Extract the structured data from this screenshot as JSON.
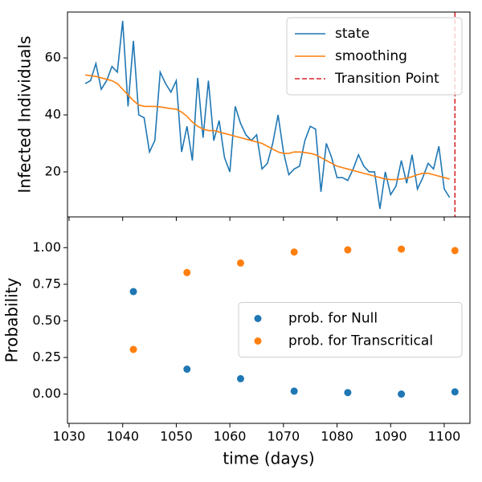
{
  "chart_data": [
    {
      "type": "line",
      "ylabel": "Infected Individuals",
      "x": [
        1033,
        1034,
        1035,
        1036,
        1037,
        1038,
        1039,
        1040,
        1041,
        1042,
        1043,
        1044,
        1045,
        1046,
        1047,
        1048,
        1049,
        1050,
        1051,
        1052,
        1053,
        1054,
        1055,
        1056,
        1057,
        1058,
        1059,
        1060,
        1061,
        1062,
        1063,
        1064,
        1065,
        1066,
        1067,
        1068,
        1069,
        1070,
        1071,
        1072,
        1073,
        1074,
        1075,
        1076,
        1077,
        1078,
        1079,
        1080,
        1081,
        1082,
        1083,
        1084,
        1085,
        1086,
        1087,
        1088,
        1089,
        1090,
        1091,
        1092,
        1093,
        1094,
        1095,
        1096,
        1097,
        1098,
        1099,
        1100,
        1101
      ],
      "series": [
        {
          "name": "state",
          "color": "#1f77b4",
          "values": [
            51,
            52,
            58,
            49,
            52,
            57,
            55,
            73,
            43,
            66,
            40,
            39,
            27,
            31,
            55,
            51,
            48,
            52,
            27,
            36,
            24,
            53,
            32,
            52,
            31,
            38,
            25,
            20,
            43,
            37,
            33,
            31,
            33,
            21,
            23,
            30,
            40,
            27,
            19,
            21,
            22,
            31,
            36,
            35,
            13,
            30,
            25,
            18,
            18,
            17,
            21,
            26,
            22,
            20,
            20,
            7,
            20,
            12,
            15,
            24,
            16,
            26,
            14,
            18,
            23,
            21,
            29,
            14,
            11
          ]
        },
        {
          "name": "smoothing",
          "color": "#ff7f0e",
          "values": [
            54,
            53.8,
            53.5,
            53,
            52.5,
            52,
            51,
            49,
            47,
            45,
            43.5,
            43,
            43,
            43,
            42.8,
            42.5,
            42.2,
            42,
            41,
            39.5,
            37.5,
            36,
            35,
            34.5,
            34.5,
            34,
            33.5,
            33,
            32.5,
            32,
            31.5,
            31,
            30.5,
            30,
            29,
            28,
            27,
            26.5,
            26.5,
            27,
            27,
            26.8,
            26.5,
            26,
            25,
            24,
            23,
            22,
            21.5,
            21,
            20.5,
            20,
            19.5,
            19,
            18.5,
            18,
            17.5,
            17.3,
            17.3,
            17.5,
            17.8,
            18.3,
            19,
            19.5,
            19.5,
            19,
            18.5,
            18,
            17.5
          ]
        }
      ],
      "transition": {
        "name": "Transition Point",
        "x": 1102,
        "color": "#d62728"
      },
      "xlim": [
        1029.7,
        1104.8
      ],
      "xticks": [
        1030,
        1040,
        1050,
        1060,
        1070,
        1080,
        1090,
        1100
      ],
      "ylim": [
        4.2,
        76.1
      ],
      "yticks": [
        20,
        40,
        60
      ],
      "legend": "upper right"
    },
    {
      "type": "scatter",
      "xlabel": "time (days)",
      "ylabel": "Probability",
      "x": [
        1042,
        1052,
        1062,
        1072,
        1082,
        1092,
        1102
      ],
      "series": [
        {
          "name": "prob. for Null",
          "color": "#1f77b4",
          "values": [
            0.7,
            0.17,
            0.105,
            0.02,
            0.01,
            0.0,
            0.015
          ]
        },
        {
          "name": "prob. for Transcritical",
          "color": "#ff7f0e",
          "values": [
            0.305,
            0.83,
            0.895,
            0.97,
            0.985,
            0.99,
            0.98
          ]
        }
      ],
      "xlim": [
        1029.7,
        1104.8
      ],
      "xticks": [
        1030,
        1040,
        1050,
        1060,
        1070,
        1080,
        1090,
        1100
      ],
      "ylim": [
        -0.2,
        1.21
      ],
      "yticks": [
        {
          "value": 0,
          "label": "0.00"
        },
        {
          "value": 0.25,
          "label": "0.25"
        },
        {
          "value": 0.5,
          "label": "0.50"
        },
        {
          "value": 0.75,
          "label": "0.75"
        },
        {
          "value": 1,
          "label": "1.00"
        }
      ],
      "legend": "center right"
    }
  ]
}
